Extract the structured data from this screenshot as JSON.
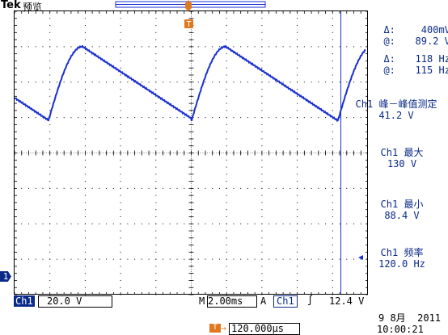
{
  "header": {
    "brand": "Tek",
    "mode": "预览"
  },
  "trigger_marker": {
    "label": "T"
  },
  "cursor_readout": {
    "delta_v_label": "Δ:",
    "delta_v_value": "400mV",
    "at_v_label": "@:",
    "at_v_value": "89.2 V",
    "delta_t_label": "Δ:",
    "delta_t_value": "118 Hz",
    "at_t_label": "@:",
    "at_t_value": "115 Hz"
  },
  "measurements": [
    {
      "label": "Ch1 峰－峰值测定",
      "value": "41.2 V"
    },
    {
      "label": "Ch1 最大",
      "value": "130 V"
    },
    {
      "label": "Ch1 最小",
      "value": "88.4 V"
    },
    {
      "label": "Ch1 频率",
      "value": "120.0 Hz"
    }
  ],
  "channel_marker": {
    "label": "1"
  },
  "bottom_bar": {
    "channel": "Ch1",
    "volts_div": "20.0 V",
    "time_prefix": "M",
    "time_div": "2.00ms",
    "trigger_prefix": "A",
    "trigger_channel": "Ch1",
    "trigger_slope": "∫",
    "trigger_level": "12.4 V",
    "position_label": "T→",
    "position_value": "120.000µs",
    "date": "9 8月  2011",
    "time": "10:00:21"
  },
  "colors": {
    "trace": "#1a2fd0",
    "grid": "#000000",
    "accent": "#e07820",
    "text": "#0a2a8a"
  }
}
